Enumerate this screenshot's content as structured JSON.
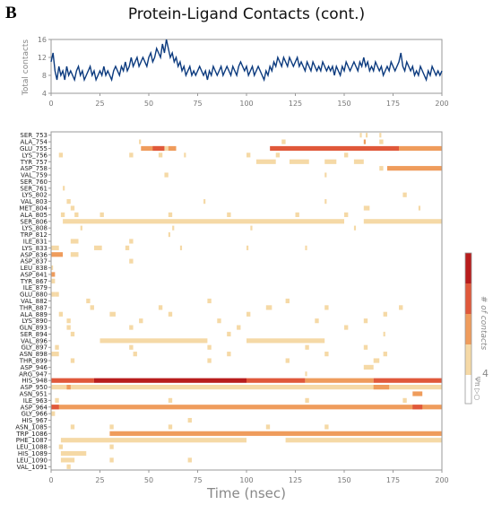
{
  "panel_letter": "B",
  "title": "Protein-Ligand Contacts (cont.)",
  "top_plot": {
    "ylabel": "Total contacts",
    "yticks": [
      "4",
      "8",
      "12",
      "16"
    ],
    "xticks": [
      "0",
      "25",
      "50",
      "75",
      "100",
      "125",
      "150",
      "175",
      "200"
    ],
    "line_color": "#0b3a7e"
  },
  "heatmap": {
    "xlabel": "Time (nsec)",
    "xticks": [
      "0",
      "25",
      "50",
      "75",
      "100",
      "125",
      "150",
      "175",
      "200"
    ],
    "colorbar_label": "# of contacts",
    "colorbar_tick": "4",
    "colorbar_side_text": "Ψπ ▷○",
    "colors": [
      "#f5d9a6",
      "#ef9c5c",
      "#e0583a",
      "#b81c1c"
    ]
  },
  "chart_data": [
    {
      "type": "line",
      "title": "Protein-Ligand Contacts (cont.)",
      "xlabel": "",
      "ylabel": "Total contacts",
      "xlim": [
        0,
        200
      ],
      "ylim": [
        4,
        16
      ],
      "x_step": 1,
      "series": [
        {
          "values": [
            11,
            13,
            9,
            7,
            10,
            8,
            9,
            7,
            10,
            8,
            9,
            8,
            7,
            9,
            10,
            8,
            9,
            7,
            8,
            9,
            10,
            8,
            9,
            7,
            8,
            9,
            8,
            10,
            8,
            9,
            8,
            7,
            9,
            10,
            9,
            8,
            10,
            9,
            11,
            9,
            10,
            12,
            10,
            11,
            12,
            10,
            11,
            12,
            11,
            10,
            12,
            13,
            11,
            12,
            14,
            13,
            12,
            15,
            13,
            16,
            14,
            12,
            13,
            11,
            12,
            10,
            11,
            9,
            10,
            8,
            9,
            10,
            8,
            9,
            8,
            9,
            10,
            9,
            8,
            9,
            7,
            9,
            8,
            10,
            9,
            8,
            9,
            10,
            8,
            9,
            10,
            9,
            8,
            10,
            9,
            8,
            10,
            11,
            10,
            9,
            10,
            8,
            9,
            10,
            8,
            9,
            10,
            9,
            8,
            7,
            9,
            8,
            10,
            9,
            11,
            10,
            12,
            11,
            10,
            12,
            11,
            10,
            12,
            11,
            10,
            11,
            12,
            10,
            11,
            10,
            9,
            11,
            10,
            9,
            11,
            10,
            9,
            10,
            9,
            11,
            10,
            9,
            10,
            9,
            10,
            8,
            10,
            9,
            8,
            10,
            9,
            11,
            10,
            9,
            10,
            11,
            10,
            9,
            11,
            10,
            12,
            10,
            11,
            9,
            10,
            9,
            11,
            10,
            9,
            10,
            8,
            9,
            10,
            9,
            11,
            10,
            9,
            10,
            11,
            13,
            10,
            9,
            11,
            10,
            9,
            10,
            8,
            9,
            8,
            10,
            9,
            8,
            7,
            9,
            8,
            10,
            9,
            8,
            9,
            8,
            9
          ]
        }
      ]
    },
    {
      "type": "heatmap",
      "xlabel": "Time (nsec)",
      "ylabel": "",
      "xlim": [
        0,
        200
      ],
      "colorbar_label": "# of contacts",
      "color_levels": [
        1,
        2,
        3,
        4
      ],
      "residues": [
        "SER_753",
        "ALA_754",
        "GLU_755",
        "LYS_756",
        "TYR_757",
        "ASP_758",
        "VAL_759",
        "SER_760",
        "SER_761",
        "LYS_802",
        "VAL_803",
        "MET_804",
        "ALA_805",
        "SER_806",
        "LYS_808",
        "TRP_812",
        "ILE_831",
        "LYS_833",
        "ASP_836",
        "ASP_837",
        "LEU_838",
        "ASP_841",
        "TYR_867",
        "ILE_879",
        "GLU_880",
        "VAL_882",
        "THR_887",
        "ALA_889",
        "LYS_890",
        "GLN_893",
        "SER_894",
        "VAL_896",
        "GLY_897",
        "ASN_898",
        "THR_899",
        "ASP_946",
        "ARG_947",
        "HIS_948",
        "ASP_950",
        "ASN_951",
        "ILE_963",
        "ASP_964",
        "GLY_966",
        "HIS_967",
        "ASN_1085",
        "TRP_1086",
        "PHE_1087",
        "LEU_1088",
        "HIS_1089",
        "LEU_1090",
        "VAL_1091"
      ],
      "rows": [
        {
          "segments": [
            [
              158,
              159,
              1
            ],
            [
              161,
              162,
              1
            ],
            [
              168,
              169,
              1
            ]
          ]
        },
        {
          "segments": [
            [
              45,
              46,
              1
            ],
            [
              118,
              120,
              1
            ],
            [
              160,
              161,
              2
            ],
            [
              168,
              170,
              1
            ]
          ]
        },
        {
          "segments": [
            [
              46,
              58,
              2
            ],
            [
              52,
              58,
              3
            ],
            [
              58,
              60,
              1
            ],
            [
              60,
              64,
              2
            ],
            [
              112,
              178,
              3
            ],
            [
              178,
              200,
              2
            ]
          ]
        },
        {
          "segments": [
            [
              4,
              6,
              1
            ],
            [
              40,
              42,
              1
            ],
            [
              55,
              57,
              1
            ],
            [
              68,
              69,
              1
            ],
            [
              100,
              102,
              1
            ],
            [
              115,
              117,
              1
            ],
            [
              150,
              152,
              1
            ]
          ]
        },
        {
          "segments": [
            [
              105,
              115,
              1
            ],
            [
              122,
              132,
              1
            ],
            [
              140,
              146,
              1
            ],
            [
              155,
              160,
              1
            ]
          ]
        },
        {
          "segments": [
            [
              168,
              170,
              1
            ],
            [
              172,
              200,
              2
            ]
          ]
        },
        {
          "segments": [
            [
              58,
              60,
              1
            ],
            [
              140,
              141,
              1
            ]
          ]
        },
        {
          "segments": []
        },
        {
          "segments": [
            [
              6,
              7,
              1
            ]
          ]
        },
        {
          "segments": [
            [
              180,
              182,
              1
            ]
          ]
        },
        {
          "segments": [
            [
              8,
              10,
              1
            ],
            [
              78,
              79,
              1
            ],
            [
              140,
              141,
              1
            ]
          ]
        },
        {
          "segments": [
            [
              10,
              12,
              1
            ],
            [
              160,
              163,
              1
            ],
            [
              188,
              189,
              1
            ]
          ]
        },
        {
          "segments": [
            [
              5,
              7,
              1
            ],
            [
              12,
              14,
              1
            ],
            [
              25,
              27,
              1
            ],
            [
              60,
              62,
              1
            ],
            [
              90,
              92,
              1
            ],
            [
              125,
              127,
              1
            ],
            [
              150,
              152,
              1
            ]
          ]
        },
        {
          "segments": [
            [
              6,
              150,
              1
            ],
            [
              160,
              200,
              1
            ]
          ]
        },
        {
          "segments": [
            [
              15,
              16,
              1
            ],
            [
              62,
              63,
              1
            ],
            [
              102,
              103,
              1
            ],
            [
              155,
              156,
              1
            ]
          ]
        },
        {
          "segments": [
            [
              60,
              61,
              1
            ]
          ]
        },
        {
          "segments": [
            [
              10,
              14,
              1
            ],
            [
              40,
              42,
              1
            ]
          ]
        },
        {
          "segments": [
            [
              0,
              4,
              1
            ],
            [
              22,
              26,
              1
            ],
            [
              38,
              40,
              1
            ],
            [
              66,
              67,
              1
            ],
            [
              100,
              101,
              1
            ],
            [
              130,
              131,
              1
            ]
          ]
        },
        {
          "segments": [
            [
              0,
              6,
              2
            ],
            [
              10,
              14,
              1
            ]
          ]
        },
        {
          "segments": [
            [
              40,
              42,
              1
            ]
          ]
        },
        {
          "segments": [
            [
              0,
              1,
              1
            ]
          ]
        },
        {
          "segments": [
            [
              0,
              2,
              2
            ]
          ]
        },
        {
          "segments": [
            [
              0,
              2,
              1
            ]
          ]
        },
        {
          "segments": []
        },
        {
          "segments": [
            [
              0,
              2,
              1
            ],
            [
              2,
              4,
              1
            ]
          ]
        },
        {
          "segments": [
            [
              18,
              20,
              1
            ],
            [
              80,
              82,
              1
            ],
            [
              120,
              122,
              1
            ]
          ]
        },
        {
          "segments": [
            [
              20,
              22,
              1
            ],
            [
              55,
              57,
              1
            ],
            [
              110,
              113,
              1
            ],
            [
              140,
              142,
              1
            ],
            [
              178,
              180,
              1
            ]
          ]
        },
        {
          "segments": [
            [
              4,
              6,
              1
            ],
            [
              30,
              33,
              1
            ],
            [
              60,
              62,
              1
            ],
            [
              100,
              102,
              1
            ],
            [
              170,
              172,
              1
            ]
          ]
        },
        {
          "segments": [
            [
              8,
              10,
              1
            ],
            [
              45,
              47,
              1
            ],
            [
              85,
              87,
              1
            ],
            [
              135,
              137,
              1
            ],
            [
              160,
              162,
              1
            ]
          ]
        },
        {
          "segments": [
            [
              8,
              10,
              1
            ],
            [
              40,
              42,
              1
            ],
            [
              95,
              97,
              1
            ],
            [
              150,
              152,
              1
            ]
          ]
        },
        {
          "segments": [
            [
              10,
              12,
              1
            ],
            [
              90,
              92,
              1
            ],
            [
              170,
              171,
              1
            ]
          ]
        },
        {
          "segments": [
            [
              25,
              80,
              1
            ],
            [
              100,
              140,
              1
            ]
          ]
        },
        {
          "segments": [
            [
              2,
              4,
              1
            ],
            [
              40,
              42,
              1
            ],
            [
              80,
              82,
              1
            ],
            [
              130,
              132,
              1
            ],
            [
              160,
              162,
              1
            ]
          ]
        },
        {
          "segments": [
            [
              0,
              4,
              1
            ],
            [
              42,
              44,
              1
            ],
            [
              90,
              92,
              1
            ],
            [
              140,
              142,
              1
            ],
            [
              170,
              172,
              1
            ]
          ]
        },
        {
          "segments": [
            [
              10,
              12,
              1
            ],
            [
              80,
              82,
              1
            ],
            [
              120,
              122,
              1
            ],
            [
              165,
              168,
              1
            ]
          ]
        },
        {
          "segments": [
            [
              160,
              165,
              1
            ]
          ]
        },
        {
          "segments": [
            [
              130,
              131,
              1
            ]
          ]
        },
        {
          "segments": [
            [
              0,
              22,
              3
            ],
            [
              22,
              100,
              4
            ],
            [
              100,
              130,
              3
            ],
            [
              130,
              165,
              2
            ],
            [
              165,
              200,
              3
            ]
          ]
        },
        {
          "segments": [
            [
              0,
              200,
              1
            ],
            [
              8,
              10,
              2
            ],
            [
              165,
              173,
              2
            ]
          ]
        },
        {
          "segments": [
            [
              185,
              190,
              2
            ]
          ]
        },
        {
          "segments": [
            [
              2,
              4,
              1
            ],
            [
              60,
              62,
              1
            ],
            [
              130,
              132,
              1
            ],
            [
              180,
              182,
              1
            ]
          ]
        },
        {
          "segments": [
            [
              0,
              200,
              2
            ],
            [
              0,
              4,
              3
            ],
            [
              185,
              190,
              3
            ]
          ]
        },
        {
          "segments": [
            [
              0,
              2,
              1
            ]
          ]
        },
        {
          "segments": [
            [
              70,
              72,
              1
            ]
          ]
        },
        {
          "segments": [
            [
              10,
              12,
              1
            ],
            [
              30,
              32,
              1
            ],
            [
              60,
              62,
              1
            ],
            [
              110,
              112,
              1
            ],
            [
              140,
              142,
              1
            ]
          ]
        },
        {
          "segments": [
            [
              30,
              200,
              2
            ]
          ]
        },
        {
          "segments": [
            [
              5,
              100,
              1
            ],
            [
              120,
              200,
              1
            ]
          ]
        },
        {
          "segments": [
            [
              4,
              6,
              1
            ],
            [
              30,
              32,
              1
            ]
          ]
        },
        {
          "segments": [
            [
              5,
              18,
              1
            ]
          ]
        },
        {
          "segments": [
            [
              5,
              12,
              1
            ],
            [
              30,
              32,
              1
            ],
            [
              70,
              72,
              1
            ]
          ]
        },
        {
          "segments": [
            [
              8,
              10,
              1
            ]
          ]
        }
      ]
    }
  ]
}
